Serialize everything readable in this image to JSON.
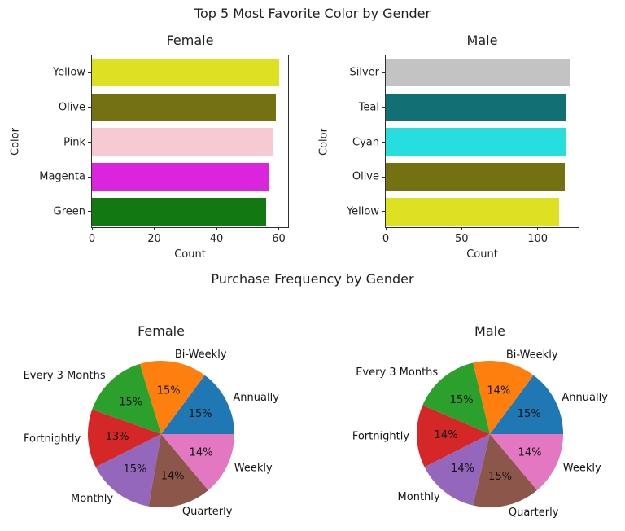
{
  "titles": {
    "bar_section": "Top 5 Most Favorite Color by Gender",
    "pie_section": "Purchase Frequency by Gender"
  },
  "colors": {
    "text": "#1f1f1f",
    "spine": "#2e2e2e",
    "background": "#ffffff"
  },
  "chart_data": [
    {
      "id": "bar-female",
      "type": "bar",
      "orientation": "horizontal",
      "title": "Female",
      "xlabel": "Count",
      "ylabel": "Color",
      "categories": [
        "Yellow",
        "Olive",
        "Pink",
        "Magenta",
        "Green"
      ],
      "values": [
        60,
        59,
        58,
        57,
        56
      ],
      "bar_colors": [
        "#dee022",
        "#747112",
        "#f7cad3",
        "#da24de",
        "#117812"
      ],
      "xticks": [
        0,
        20,
        40,
        60
      ],
      "xlim": [
        0,
        63
      ],
      "grid": false
    },
    {
      "id": "bar-male",
      "type": "bar",
      "orientation": "horizontal",
      "title": "Male",
      "xlabel": "Count",
      "ylabel": "Color",
      "categories": [
        "Silver",
        "Teal",
        "Cyan",
        "Olive",
        "Yellow"
      ],
      "values": [
        121,
        119,
        119,
        118,
        114
      ],
      "bar_colors": [
        "#c3c3c3",
        "#117073",
        "#26dede",
        "#747112",
        "#dee022"
      ],
      "xticks": [
        0,
        50,
        100
      ],
      "xlim": [
        0,
        127
      ],
      "grid": false
    },
    {
      "id": "pie-female",
      "type": "pie",
      "title": "Female",
      "labels": [
        "Annually",
        "Bi-Weekly",
        "Every 3 Months",
        "Fortnightly",
        "Monthly",
        "Quarterly",
        "Weekly"
      ],
      "values": [
        15,
        15,
        15,
        13,
        15,
        14,
        14
      ],
      "pct_labels": [
        "15%",
        "15%",
        "15%",
        "13%",
        "15%",
        "14%",
        "14%"
      ],
      "slice_colors": [
        "#1f77b4",
        "#ff7f0e",
        "#2ca02c",
        "#d62728",
        "#9467bd",
        "#8c564b",
        "#e377c2"
      ],
      "start_angle": 0,
      "direction": "counterclockwise",
      "legend": "none"
    },
    {
      "id": "pie-male",
      "type": "pie",
      "title": "Male",
      "labels": [
        "Annually",
        "Bi-Weekly",
        "Every 3 Months",
        "Fortnightly",
        "Monthly",
        "Quarterly",
        "Weekly"
      ],
      "values": [
        15,
        14,
        15,
        14,
        14,
        15,
        14
      ],
      "pct_labels": [
        "15%",
        "14%",
        "15%",
        "14%",
        "14%",
        "15%",
        "14%"
      ],
      "slice_colors": [
        "#1f77b4",
        "#ff7f0e",
        "#2ca02c",
        "#d62728",
        "#9467bd",
        "#8c564b",
        "#e377c2"
      ],
      "start_angle": 0,
      "direction": "counterclockwise",
      "legend": "none"
    }
  ]
}
